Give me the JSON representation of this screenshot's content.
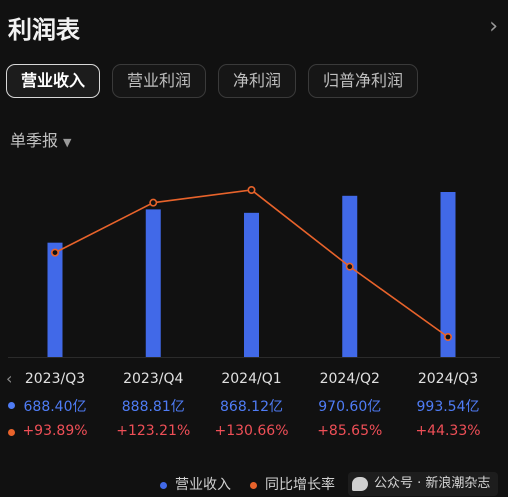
{
  "header": {
    "title": "利润表",
    "more_icon": "chevron-right-icon"
  },
  "tabs": [
    {
      "label": "营业收入",
      "active": true
    },
    {
      "label": "营业利润",
      "active": false
    },
    {
      "label": "净利润",
      "active": false
    },
    {
      "label": "归普净利润",
      "active": false
    }
  ],
  "period_selector": {
    "label": "单季报",
    "icon": "caret-down-icon"
  },
  "colors": {
    "revenue": "#4169e8",
    "growth": "#e8632b",
    "growth_text": "#ef4f57",
    "revenue_text": "#4f7cf5"
  },
  "chart_data": {
    "type": "bar",
    "categories": [
      "2023/Q3",
      "2023/Q4",
      "2024/Q1",
      "2024/Q2",
      "2024/Q3"
    ],
    "series": [
      {
        "name": "营业收入",
        "type": "bar",
        "values": [
          688.4,
          888.81,
          868.12,
          970.6,
          993.54
        ],
        "labels": [
          "688.40亿",
          "888.81亿",
          "868.12亿",
          "970.60亿",
          "993.54亿"
        ]
      },
      {
        "name": "同比增长率",
        "type": "line",
        "values": [
          93.89,
          123.21,
          130.66,
          85.65,
          44.33
        ],
        "labels": [
          "+93.89%",
          "+123.21%",
          "+130.66%",
          "+85.65%",
          "+44.33%"
        ]
      }
    ],
    "legend": [
      "营业收入",
      "同比增长率"
    ],
    "legend_position": "bottom"
  },
  "watermark": {
    "text": "公众号 · 新浪潮杂志"
  }
}
